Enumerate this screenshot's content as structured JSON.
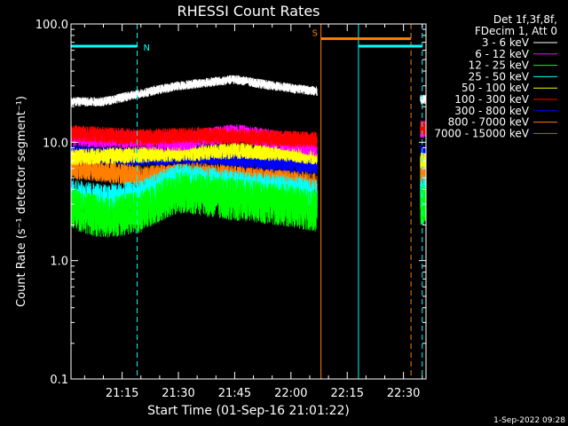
{
  "chart_data": {
    "type": "line",
    "title": "RHESSI Count Rates",
    "xlabel": "Start Time (01-Sep-16 21:01:22)",
    "ylabel": "Count Rate (s⁻¹ detector segment⁻¹)",
    "y_scale": "log",
    "ylim": [
      0.1,
      100.0
    ],
    "y_ticks": [
      "0.1",
      "1.0",
      "10.0",
      "100.0"
    ],
    "x_ticks": [
      "21:15",
      "21:30",
      "21:45",
      "22:00",
      "22:15",
      "22:30"
    ],
    "xlim": [
      "21:01:22",
      "22:36:00"
    ],
    "legend_header": [
      "Det 1f,3f,8f,",
      "FDecim 1, Att 0"
    ],
    "legend_position": "top-right",
    "series": [
      {
        "name": "3 - 6 keV",
        "color": "#ffffff",
        "level": [
          [
            "21:01",
            22
          ],
          [
            "21:10",
            22
          ],
          [
            "21:18",
            25
          ],
          [
            "21:30",
            30
          ],
          [
            "21:45",
            34
          ],
          [
            "21:55",
            30
          ],
          [
            "22:07",
            27
          ],
          [
            "22:35",
            23
          ]
        ]
      },
      {
        "name": "6 - 12 keV",
        "color": "#ff00ff",
        "level": [
          [
            "21:01",
            11
          ],
          [
            "21:20",
            10.5
          ],
          [
            "21:30",
            10
          ],
          [
            "21:45",
            12
          ],
          [
            "22:00",
            10
          ],
          [
            "22:07",
            9
          ],
          [
            "22:35",
            13
          ]
        ]
      },
      {
        "name": "12 - 25 keV",
        "color": "#00ff00",
        "level": [
          [
            "21:01",
            2.8
          ],
          [
            "21:10",
            2.3
          ],
          [
            "21:20",
            2.6
          ],
          [
            "21:30",
            3.8
          ],
          [
            "21:45",
            3.3
          ],
          [
            "22:00",
            2.9
          ],
          [
            "22:07",
            2.6
          ],
          [
            "22:35",
            3.0
          ]
        ]
      },
      {
        "name": "25 - 50 keV",
        "color": "#00ffff",
        "level": [
          [
            "21:01",
            3.6
          ],
          [
            "21:10",
            3.2
          ],
          [
            "21:20",
            3.5
          ],
          [
            "21:30",
            4.8
          ],
          [
            "21:45",
            4.2
          ],
          [
            "22:00",
            3.8
          ],
          [
            "22:07",
            3.5
          ],
          [
            "22:35",
            3.8
          ]
        ]
      },
      {
        "name": "50 - 100 keV",
        "color": "#ffff00",
        "level": [
          [
            "21:01",
            7.5
          ],
          [
            "21:30",
            8
          ],
          [
            "21:45",
            8.5
          ],
          [
            "22:00",
            8
          ],
          [
            "22:07",
            7.5
          ],
          [
            "22:35",
            7.0
          ]
        ]
      },
      {
        "name": "100 - 300 keV",
        "color": "#ff0000",
        "level": [
          [
            "21:01",
            12
          ],
          [
            "21:20",
            11
          ],
          [
            "21:35",
            11.5
          ],
          [
            "21:50",
            11
          ],
          [
            "22:07",
            10.5
          ],
          [
            "22:35",
            13
          ]
        ]
      },
      {
        "name": "300 - 800 keV",
        "color": "#0000ff",
        "level": [
          [
            "21:01",
            8
          ],
          [
            "21:20",
            7.5
          ],
          [
            "21:35",
            7.8
          ],
          [
            "21:50",
            7
          ],
          [
            "22:07",
            6.3
          ],
          [
            "22:35",
            8
          ]
        ]
      },
      {
        "name": "800 - 7000 keV",
        "color": "#ff8000",
        "level": [
          [
            "21:01",
            6
          ],
          [
            "21:20",
            5.2
          ],
          [
            "21:35",
            5.5
          ],
          [
            "21:50",
            5
          ],
          [
            "22:07",
            4.5
          ],
          [
            "22:35",
            5.5
          ]
        ]
      },
      {
        "name": "7000 - 15000 keV",
        "color": "#808000",
        "level": []
      }
    ],
    "data_gap": [
      "22:07:00",
      "22:34:30"
    ],
    "annotations": [
      {
        "label": "N",
        "color": "#00ffff",
        "bar_start": "21:01:22",
        "bar_end": "21:19:00",
        "bar_y": 65
      },
      {
        "label": "S",
        "color": "#ff8000",
        "bar_start": "22:08:00",
        "bar_end": "22:32:00",
        "bar_y": 75
      },
      {
        "label": "",
        "color": "#00ffff",
        "bar_start": "22:18:00",
        "bar_end": "22:35:00",
        "bar_y": 65
      }
    ],
    "vertical_lines": [
      {
        "time": "21:01:22",
        "color": "#00ffff",
        "style": "solid"
      },
      {
        "time": "21:19:00",
        "color": "#00ffff",
        "style": "dashed"
      },
      {
        "time": "22:08:00",
        "color": "#ff8000",
        "style": "solid"
      },
      {
        "time": "22:18:00",
        "color": "#00ffff",
        "style": "solid"
      },
      {
        "time": "22:32:00",
        "color": "#ff8000",
        "style": "dashed"
      },
      {
        "time": "22:35:00",
        "color": "#00ffff",
        "style": "dashed"
      }
    ]
  },
  "footer": {
    "timestamp": "1-Sep-2022 09:28"
  }
}
